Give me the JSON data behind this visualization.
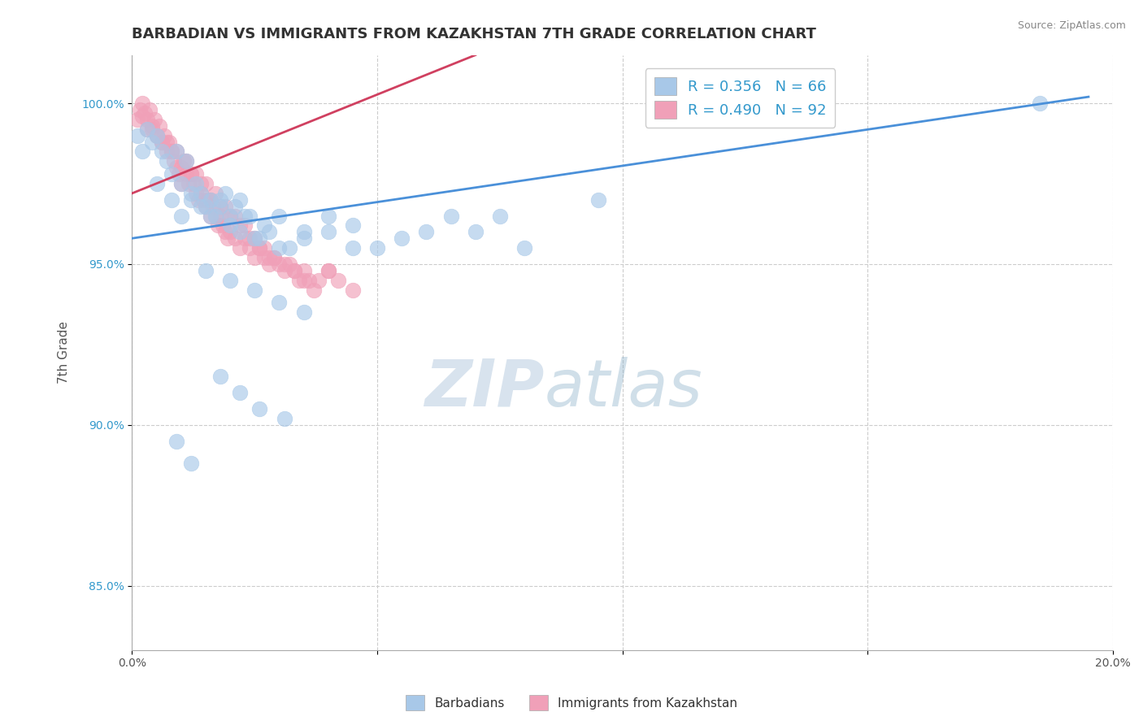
{
  "title": "BARBADIAN VS IMMIGRANTS FROM KAZAKHSTAN 7TH GRADE CORRELATION CHART",
  "source_text": "Source: ZipAtlas.com",
  "ylabel": "7th Grade",
  "xlim": [
    0.0,
    20.0
  ],
  "ylim": [
    83.0,
    101.5
  ],
  "x_ticks": [
    0.0,
    5.0,
    10.0,
    15.0,
    20.0
  ],
  "x_tick_labels": [
    "0.0%",
    "",
    "",
    "",
    "20.0%"
  ],
  "y_ticks": [
    85.0,
    90.0,
    95.0,
    100.0
  ],
  "y_tick_labels": [
    "85.0%",
    "90.0%",
    "95.0%",
    "100.0%"
  ],
  "blue_color": "#A8C8E8",
  "pink_color": "#F0A0B8",
  "blue_line_color": "#4A90D9",
  "pink_line_color": "#D04060",
  "legend_label_blue": "Barbadians",
  "legend_label_pink": "Immigrants from Kazakhstan",
  "watermark_zip": "ZIP",
  "watermark_atlas": "atlas",
  "title_fontsize": 13,
  "axis_label_fontsize": 11,
  "tick_fontsize": 10,
  "blue_scatter_x": [
    0.1,
    0.2,
    0.3,
    0.4,
    0.5,
    0.6,
    0.7,
    0.8,
    0.9,
    1.0,
    1.1,
    1.2,
    1.3,
    1.4,
    1.5,
    1.6,
    1.7,
    1.8,
    1.9,
    2.0,
    2.1,
    2.2,
    2.3,
    2.5,
    2.7,
    3.0,
    3.2,
    3.5,
    4.0,
    4.5,
    5.0,
    6.0,
    7.5,
    9.5,
    18.5,
    0.5,
    0.8,
    1.0,
    1.2,
    1.4,
    1.6,
    1.8,
    2.0,
    2.2,
    2.4,
    2.6,
    2.8,
    3.0,
    3.5,
    4.0,
    4.5,
    5.5,
    6.5,
    7.0,
    8.0,
    1.5,
    2.0,
    2.5,
    3.0,
    3.5,
    1.8,
    2.2,
    2.6,
    3.1,
    1.2,
    0.9
  ],
  "blue_scatter_y": [
    99.0,
    98.5,
    99.2,
    98.8,
    99.0,
    98.5,
    98.2,
    97.8,
    98.5,
    97.5,
    98.2,
    97.0,
    97.5,
    97.2,
    96.8,
    97.0,
    96.5,
    96.8,
    97.2,
    96.5,
    96.8,
    97.0,
    96.5,
    95.8,
    96.2,
    96.5,
    95.5,
    96.0,
    96.5,
    96.2,
    95.5,
    96.0,
    96.5,
    97.0,
    100.0,
    97.5,
    97.0,
    96.5,
    97.2,
    96.8,
    96.5,
    97.0,
    96.2,
    96.0,
    96.5,
    95.8,
    96.0,
    95.5,
    95.8,
    96.0,
    95.5,
    95.8,
    96.5,
    96.0,
    95.5,
    94.8,
    94.5,
    94.2,
    93.8,
    93.5,
    91.5,
    91.0,
    90.5,
    90.2,
    88.8,
    89.5
  ],
  "pink_scatter_x": [
    0.1,
    0.15,
    0.2,
    0.25,
    0.3,
    0.35,
    0.4,
    0.45,
    0.5,
    0.55,
    0.6,
    0.65,
    0.7,
    0.75,
    0.8,
    0.85,
    0.9,
    0.95,
    1.0,
    1.05,
    1.1,
    1.15,
    1.2,
    1.25,
    1.3,
    1.35,
    1.4,
    1.45,
    1.5,
    1.55,
    1.6,
    1.65,
    1.7,
    1.75,
    1.8,
    1.85,
    1.9,
    1.95,
    2.0,
    2.1,
    2.2,
    2.3,
    2.4,
    2.5,
    2.6,
    2.7,
    2.8,
    2.9,
    3.0,
    3.1,
    3.2,
    3.3,
    3.4,
    3.5,
    3.6,
    3.7,
    3.8,
    4.0,
    4.2,
    4.5,
    0.3,
    0.5,
    0.7,
    0.9,
    1.1,
    1.3,
    1.5,
    1.7,
    1.9,
    2.1,
    2.3,
    2.5,
    2.7,
    2.9,
    3.1,
    3.3,
    3.5,
    4.0,
    0.2,
    0.4,
    0.6,
    0.8,
    1.0,
    1.2,
    1.4,
    1.6,
    1.8,
    2.0,
    2.2,
    2.4,
    2.6,
    2.8
  ],
  "pink_scatter_y": [
    99.5,
    99.8,
    100.0,
    99.7,
    99.5,
    99.8,
    99.2,
    99.5,
    99.0,
    99.3,
    98.8,
    99.0,
    98.5,
    98.8,
    98.5,
    98.2,
    98.0,
    97.8,
    97.5,
    98.2,
    97.8,
    97.5,
    97.8,
    97.5,
    97.2,
    97.0,
    97.2,
    97.0,
    96.8,
    97.0,
    96.5,
    96.8,
    96.5,
    96.2,
    96.5,
    96.2,
    96.0,
    95.8,
    96.0,
    95.8,
    95.5,
    95.8,
    95.5,
    95.2,
    95.5,
    95.2,
    95.0,
    95.2,
    95.0,
    94.8,
    95.0,
    94.8,
    94.5,
    94.8,
    94.5,
    94.2,
    94.5,
    94.8,
    94.5,
    94.2,
    99.2,
    99.0,
    98.8,
    98.5,
    98.2,
    97.8,
    97.5,
    97.2,
    96.8,
    96.5,
    96.2,
    95.8,
    95.5,
    95.2,
    95.0,
    94.8,
    94.5,
    94.8,
    99.6,
    99.3,
    98.8,
    98.5,
    98.0,
    97.8,
    97.5,
    97.0,
    96.8,
    96.5,
    96.2,
    95.8,
    95.5,
    95.2
  ],
  "blue_trendline_x0": 0.0,
  "blue_trendline_y0": 95.8,
  "blue_trendline_x1": 19.5,
  "blue_trendline_y1": 100.2,
  "pink_trendline_x0": 0.0,
  "pink_trendline_y0": 97.2,
  "pink_trendline_x1": 7.0,
  "pink_trendline_y1": 101.5
}
